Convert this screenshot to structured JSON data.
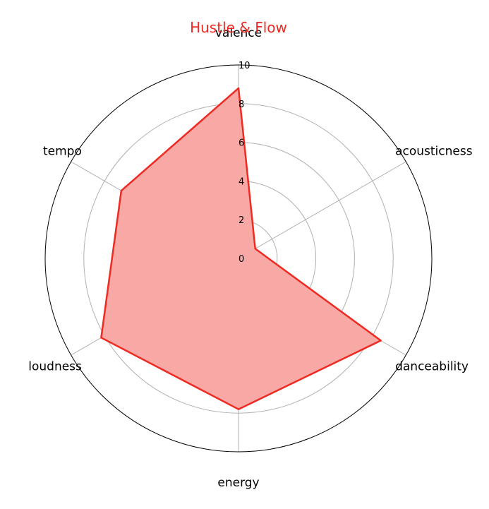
{
  "chart_data": {
    "type": "radar",
    "title": "Hustle & Flow",
    "axes": [
      "valence",
      "acousticness",
      "danceability",
      "energy",
      "loudness",
      "tempo"
    ],
    "series": [
      {
        "values": [
          8.8,
          1.0,
          8.5,
          7.8,
          8.2,
          7.0
        ]
      }
    ],
    "rlim": [
      0,
      10
    ],
    "r_ticks": [
      "0",
      "2",
      "4",
      "6",
      "8",
      "10"
    ],
    "grid": true,
    "colors": {
      "line": "#ee2a22",
      "fill": "#f8a9a6",
      "title": "#ee2a22",
      "grid": "#b0b0b0",
      "frame": "#000000"
    }
  }
}
